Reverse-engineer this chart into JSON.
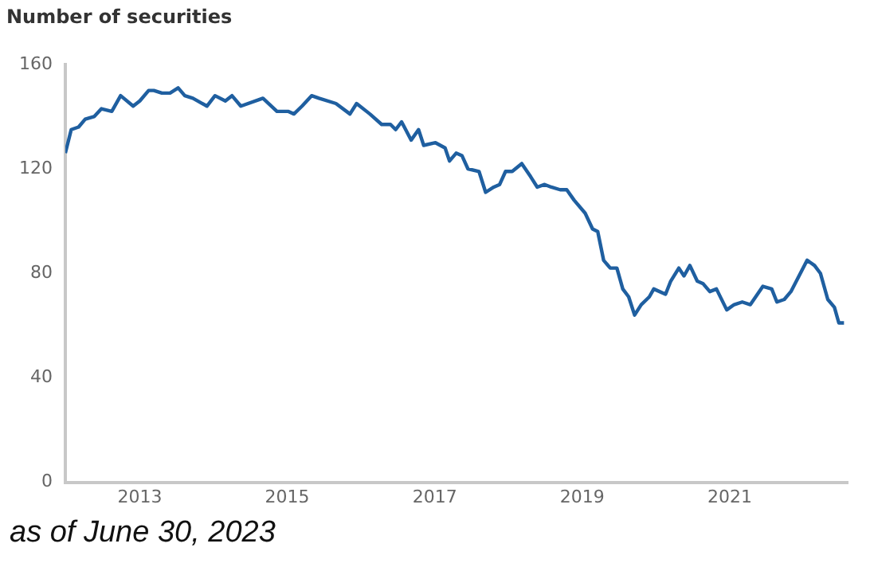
{
  "chart_data": {
    "type": "line",
    "title": "Number of securities",
    "x": [
      2011.99,
      2012.07,
      2012.17,
      2012.26,
      2012.38,
      2012.48,
      2012.62,
      2012.74,
      2012.91,
      2013.0,
      2013.12,
      2013.19,
      2013.3,
      2013.41,
      2013.52,
      2013.61,
      2013.72,
      2013.91,
      2014.02,
      2014.16,
      2014.25,
      2014.37,
      2014.67,
      2014.86,
      2015.01,
      2015.09,
      2015.2,
      2015.33,
      2015.43,
      2015.66,
      2015.85,
      2015.94,
      2016.12,
      2016.28,
      2016.4,
      2016.47,
      2016.55,
      2016.68,
      2016.78,
      2016.85,
      2017.01,
      2017.14,
      2017.2,
      2017.29,
      2017.37,
      2017.45,
      2017.6,
      2017.69,
      2017.8,
      2017.88,
      2017.96,
      2018.05,
      2018.18,
      2018.3,
      2018.39,
      2018.49,
      2018.58,
      2018.7,
      2018.79,
      2018.89,
      2019.04,
      2019.14,
      2019.21,
      2019.29,
      2019.38,
      2019.47,
      2019.55,
      2019.63,
      2019.71,
      2019.8,
      2019.91,
      2019.97,
      2020.13,
      2020.2,
      2020.31,
      2020.38,
      2020.46,
      2020.56,
      2020.64,
      2020.73,
      2020.82,
      2020.96,
      2021.06,
      2021.17,
      2021.28,
      2021.45,
      2021.57,
      2021.64,
      2021.74,
      2021.83,
      2022.05,
      2022.15,
      2022.23,
      2022.33,
      2022.42,
      2022.48,
      2022.55
    ],
    "series": [
      {
        "color": "#1f5fa0",
        "values": [
          126,
          135,
          136,
          139,
          140,
          143,
          142,
          148,
          144,
          146,
          150,
          150,
          149,
          149,
          151,
          148,
          147,
          144,
          148,
          146,
          148,
          144,
          147,
          142,
          142,
          141,
          144,
          148,
          147,
          145,
          141,
          145,
          141,
          137,
          137,
          135,
          138,
          131,
          135,
          129,
          130,
          128,
          123,
          126,
          125,
          120,
          119,
          111,
          113,
          114,
          119,
          119,
          122,
          117,
          113,
          114,
          113,
          112,
          112,
          108,
          103,
          97,
          96,
          85,
          82,
          82,
          74,
          71,
          64,
          68,
          71,
          74,
          72,
          77,
          82,
          79,
          83,
          77,
          76,
          73,
          74,
          66,
          68,
          69,
          68,
          75,
          74,
          69,
          70,
          73,
          85,
          83,
          80,
          70,
          67,
          61,
          61
        ]
      }
    ],
    "xlim": [
      2011.99,
      2022.6
    ],
    "xticks": [
      2013,
      2015,
      2017,
      2019,
      2021
    ],
    "ylim": [
      0,
      160
    ],
    "yticks": [
      0,
      40,
      80,
      120,
      160
    ],
    "grid": false,
    "legend": false,
    "marker": "none",
    "line_style": "solid",
    "annotations": [
      "as of June 30, 2023"
    ]
  }
}
